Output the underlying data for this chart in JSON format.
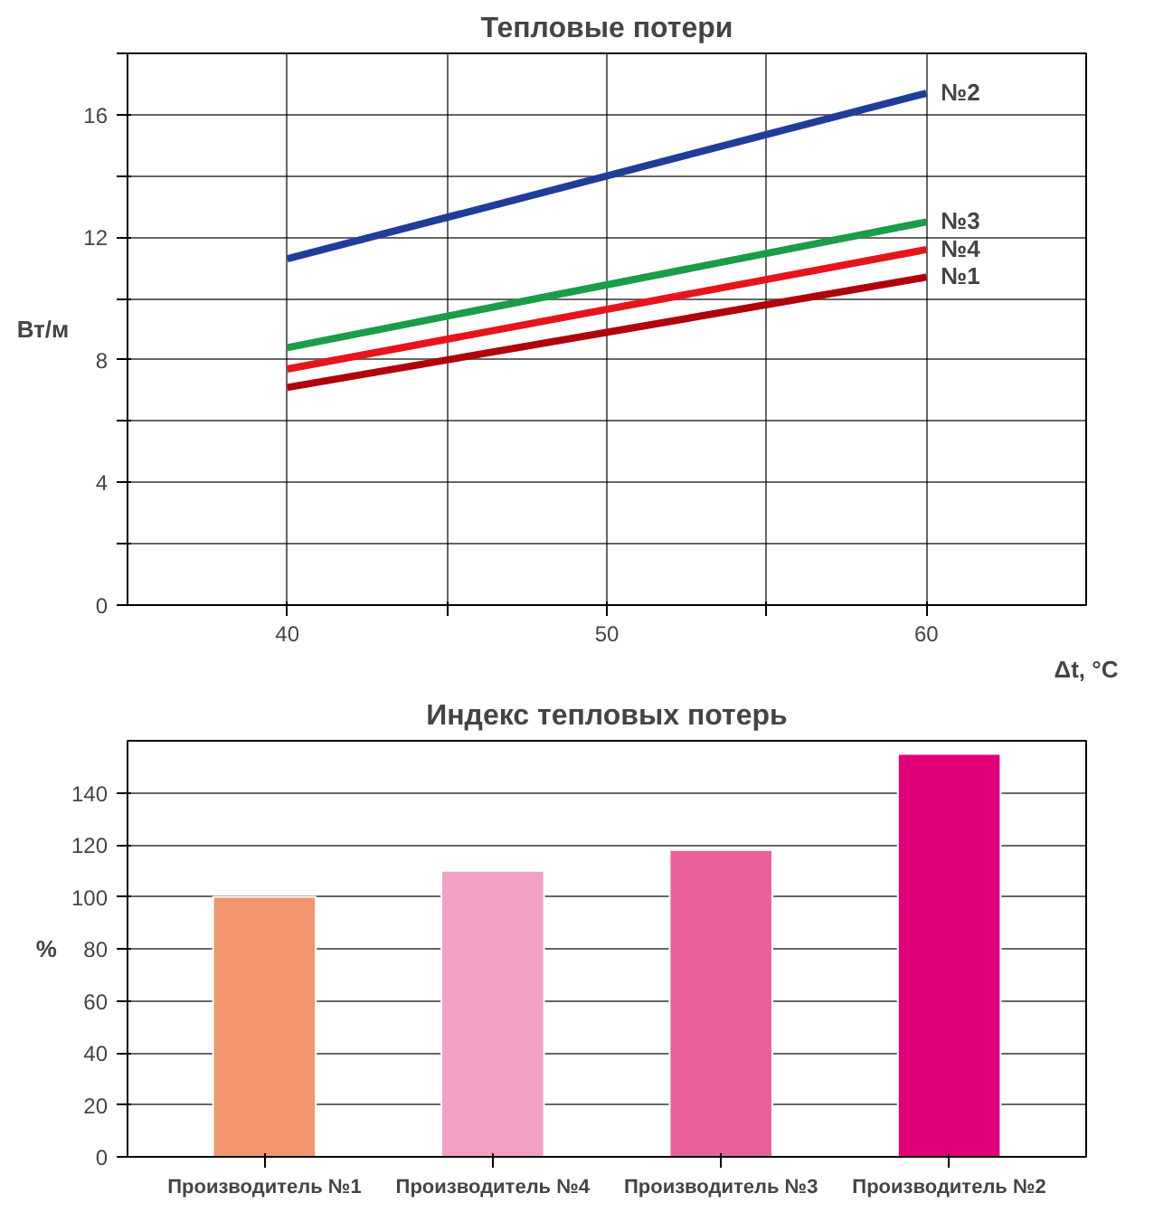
{
  "chart_data": [
    {
      "type": "line",
      "title": "Тепловые потери",
      "ylabel": "Вт/м",
      "xlabel": "Δt, °C",
      "xlim": [
        35,
        65
      ],
      "ylim": [
        0,
        18
      ],
      "xticks": [
        40,
        {
          "value": 45,
          "label": null
        },
        50,
        {
          "value": 55,
          "label": null
        },
        60
      ],
      "yticks": [
        0,
        {
          "value": 2,
          "label": null
        },
        4,
        {
          "value": 6,
          "label": null
        },
        8,
        {
          "value": 10,
          "label": null
        },
        12,
        {
          "value": 14,
          "label": null
        },
        16,
        {
          "value": 18,
          "label": null
        }
      ],
      "grid": true,
      "legend": false,
      "x": [
        40,
        60
      ],
      "series": [
        {
          "name": "№2",
          "color": "#1f3d99",
          "values": [
            11.3,
            16.7
          ]
        },
        {
          "name": "№3",
          "color": "#1a9c48",
          "values": [
            8.4,
            12.5
          ]
        },
        {
          "name": "№4",
          "color": "#e8141c",
          "values": [
            7.7,
            11.6
          ]
        },
        {
          "name": "№1",
          "color": "#b0040c",
          "values": [
            7.1,
            10.7
          ]
        }
      ]
    },
    {
      "type": "bar",
      "title": "Индекс тепловых потерь",
      "ylabel": "%",
      "categories": [
        "Производитель №1",
        "Производитель №4",
        "Производитель №3",
        "Производитель №2"
      ],
      "values": [
        100,
        110,
        118,
        155
      ],
      "colors": [
        "#f0956e",
        "#f0a0c4",
        "#e8609c",
        "#e0007a"
      ],
      "ylim": [
        0,
        160
      ],
      "yticks": [
        0,
        20,
        40,
        60,
        80,
        100,
        120,
        140
      ],
      "grid": "y"
    }
  ]
}
